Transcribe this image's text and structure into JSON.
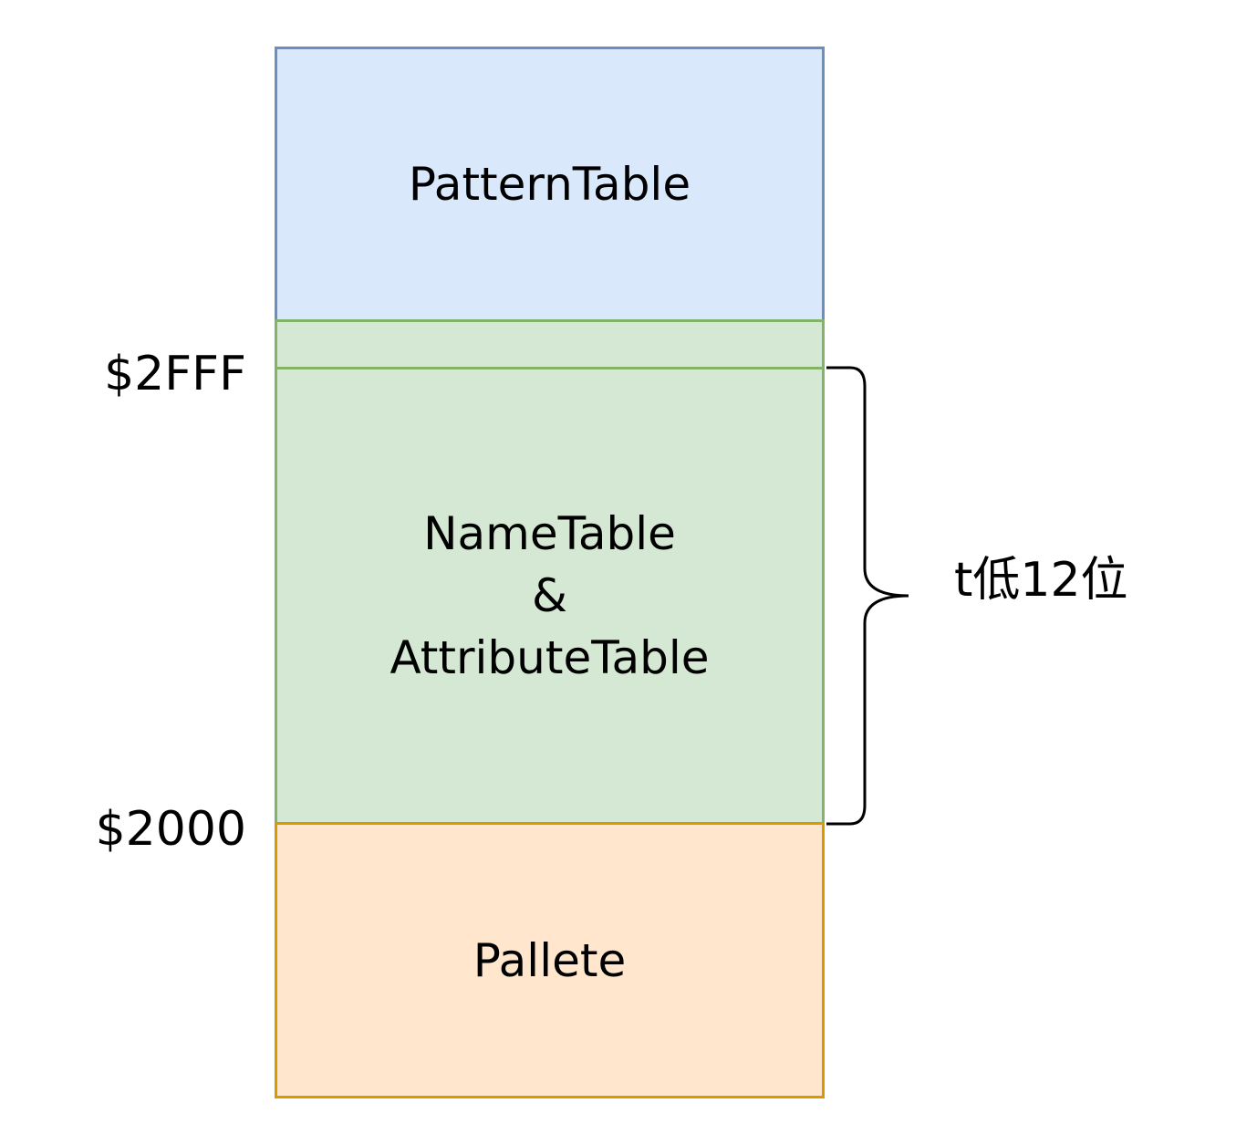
{
  "blocks": {
    "pattern": {
      "label": "PatternTable",
      "fill": "#dae8fc",
      "stroke": "#6c8ebf"
    },
    "gap": {
      "fill": "#d5e8d4",
      "stroke": "#82b366"
    },
    "nametable": {
      "label": "NameTable\n&\nAttributeTable",
      "fill": "#d5e8d4",
      "stroke": "#82b366"
    },
    "pallete": {
      "label": "Pallete",
      "fill": "#ffe6cc",
      "stroke": "#d79b00"
    }
  },
  "addresses": {
    "top": "$2FFF",
    "bottom": "$2000"
  },
  "brace": {
    "label": "t低12位",
    "color": "#000000"
  }
}
